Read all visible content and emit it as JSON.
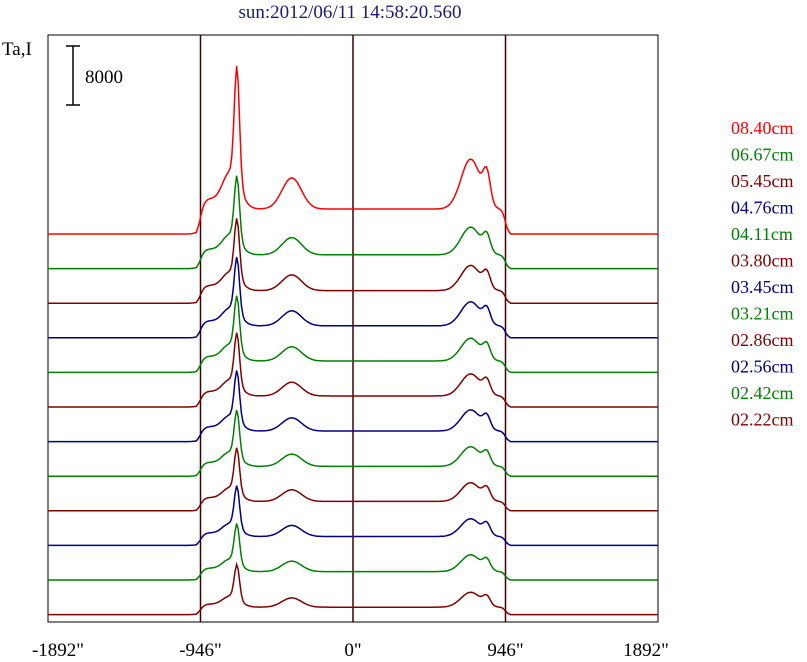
{
  "chart_data": {
    "type": "line",
    "title": "sun:2012/06/11 14:58:20.560",
    "ylabel": "Ta,I",
    "scale_bar_label": "8000",
    "x_ticks": [
      {
        "value": -1892,
        "label": "-1892\""
      },
      {
        "value": -946,
        "label": "-946\""
      },
      {
        "value": 0,
        "label": "0\""
      },
      {
        "value": 946,
        "label": "946\""
      },
      {
        "value": 1892,
        "label": "1892\""
      }
    ],
    "vertical_lines": [
      -946,
      0,
      946
    ],
    "xlim": [
      -1892,
      1892
    ],
    "legend_placement": "right",
    "series": [
      {
        "name": "08.40cm",
        "color": "#ff0000",
        "baseline": 0,
        "amp": 1.3
      },
      {
        "name": "06.67cm",
        "color": "#008000",
        "baseline": 1,
        "amp": 1.15
      },
      {
        "name": "05.45cm",
        "color": "#800000",
        "baseline": 2,
        "amp": 1.05
      },
      {
        "name": "04.76cm",
        "color": "#000080",
        "baseline": 3,
        "amp": 1.0
      },
      {
        "name": "04.11cm",
        "color": "#008000",
        "baseline": 4,
        "amp": 0.95
      },
      {
        "name": "03.80cm",
        "color": "#800000",
        "baseline": 5,
        "amp": 0.92
      },
      {
        "name": "03.45cm",
        "color": "#000080",
        "baseline": 6,
        "amp": 0.88
      },
      {
        "name": "03.21cm",
        "color": "#008000",
        "baseline": 7,
        "amp": 0.82
      },
      {
        "name": "02.86cm",
        "color": "#800000",
        "baseline": 8,
        "amp": 0.78
      },
      {
        "name": "02.56cm",
        "color": "#000080",
        "baseline": 9,
        "amp": 0.74
      },
      {
        "name": "02.42cm",
        "color": "#008000",
        "baseline": 10,
        "amp": 0.7
      },
      {
        "name": "02.22cm",
        "color": "#800000",
        "baseline": 11,
        "amp": 0.62
      }
    ]
  }
}
